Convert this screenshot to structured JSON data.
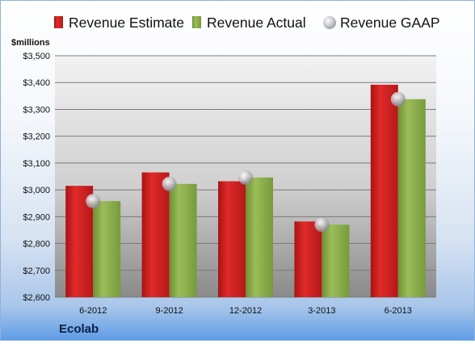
{
  "company": "Ecolab",
  "chart_data": {
    "type": "bar",
    "unit_label": "$millions",
    "categories": [
      "6-2012",
      "9-2012",
      "12-2012",
      "3-2013",
      "6-2013"
    ],
    "series": [
      {
        "name": "Revenue Estimate",
        "type": "bar",
        "color": "#cc1f1f",
        "values": [
          3015,
          3065,
          3032,
          2882,
          3392
        ]
      },
      {
        "name": "Revenue Actual",
        "type": "bar",
        "color": "#8aaa4a",
        "values": [
          2958,
          3022,
          3046,
          2870,
          3338
        ]
      },
      {
        "name": "Revenue GAAP",
        "type": "marker",
        "color": "#c8c8cc",
        "values": [
          2958,
          3022,
          3046,
          2870,
          3338
        ]
      }
    ],
    "ylim": [
      2600,
      3500
    ],
    "yticks": [
      2600,
      2700,
      2800,
      2900,
      3000,
      3100,
      3200,
      3300,
      3400,
      3500
    ],
    "ytick_labels": [
      "$2,600",
      "$2,700",
      "$2,800",
      "$2,900",
      "$3,000",
      "$3,100",
      "$3,200",
      "$3,300",
      "$3,400",
      "$3,500"
    ],
    "grid": true,
    "legend_position": "top"
  }
}
